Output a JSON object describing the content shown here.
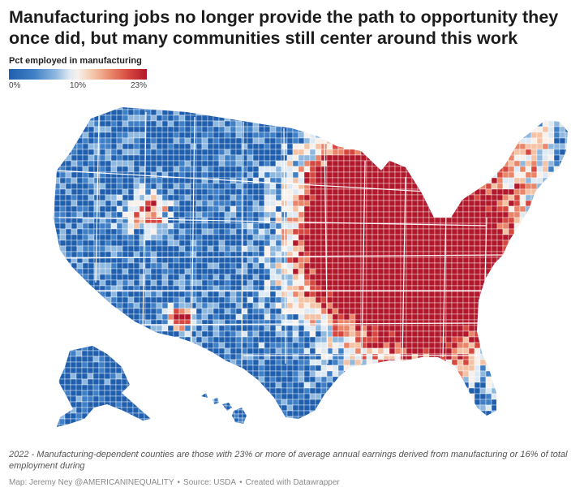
{
  "title": "Manufacturing jobs no longer provide the path to opportunity they once did, but many communities still center around this work",
  "legend": {
    "title": "Pct employed in manufacturing",
    "min_label": "0%",
    "mid_label": "10%",
    "max_label": "23%",
    "colors": [
      "#1f5fae",
      "#3f7fc6",
      "#8fb8df",
      "#dfe9f3",
      "#f7f0eb",
      "#f4c2a4",
      "#e9866a",
      "#d6483f",
      "#b2182b"
    ]
  },
  "map": {
    "subject": "US counties by percent employed in manufacturing",
    "regions": [
      "Contiguous US",
      "Alaska",
      "Hawaii"
    ],
    "high_concentration_areas": [
      "Upper Midwest",
      "Great Lakes",
      "Southeast"
    ],
    "low_concentration_areas": [
      "Mountain West",
      "Great Plains",
      "Florida"
    ]
  },
  "note": "2022 - Manufacturing-dependent counties are those with 23% or more of average annual earnings derived from manufacturing or 16% of total employment during",
  "credit": {
    "author": "Map: Jeremy Ney @AMERICANINEQUALITY",
    "source": "Source: USDA",
    "tool": "Created with Datawrapper"
  }
}
